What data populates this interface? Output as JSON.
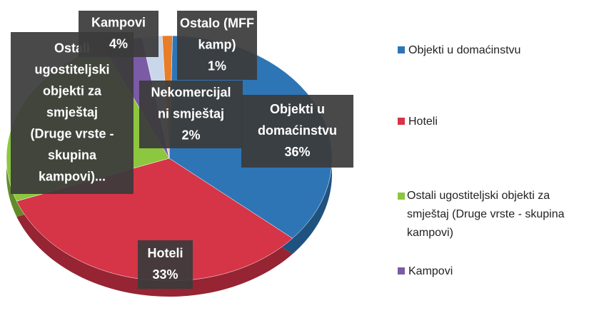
{
  "chart_data": {
    "type": "pie",
    "categories": [
      "Objekti u domaćinstvu",
      "Hoteli",
      "Ostali ugostiteljski objekti za smještaj (Druge vrste - skupina kampovi)",
      "Kampovi",
      "Nekomercijalni smještaj",
      "Ostalo (MFF kamp)"
    ],
    "values": [
      36,
      33,
      24,
      4,
      2,
      1
    ],
    "value_labels": [
      "36%",
      "33%",
      null,
      "4%",
      "2%",
      "1%"
    ],
    "label_lines": [
      [
        "Objekti u",
        "domaćinstvu"
      ],
      [
        "Hoteli"
      ],
      [
        "Ostali",
        "ugostiteljski",
        "objekti za",
        "smještaj",
        "(Druge vrste -",
        "skupina",
        "kampovi)..."
      ],
      [
        "Kampovi"
      ],
      [
        "Nekomercijal",
        "ni smještaj"
      ],
      [
        "Ostalo (MFF",
        "kamp)"
      ]
    ],
    "colors": [
      "#2e75b6",
      "#d63447",
      "#8dc63f",
      "#7b5aa6",
      "#c9d7ea",
      "#e87d2a"
    ]
  }
}
